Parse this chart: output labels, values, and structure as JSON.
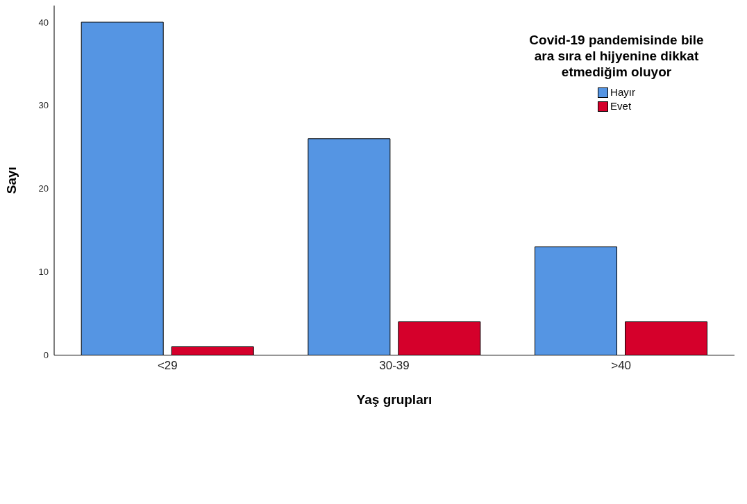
{
  "chart_data": {
    "type": "bar",
    "xlabel": "Yaş grupları",
    "ylabel": "Sayı",
    "legend_title": "Covid-19 pandemisinde bile ara sıra el hijyenine dikkat etmediğim oluyor",
    "categories": [
      "<29",
      "30-39",
      ">40"
    ],
    "series": [
      {
        "name": "Hayır",
        "color": "#5595e3",
        "values": [
          40,
          26,
          13
        ]
      },
      {
        "name": "Evet",
        "color": "#d5002b",
        "values": [
          1,
          4,
          4
        ]
      }
    ],
    "ylim": [
      0,
      42
    ],
    "yticks": [
      0,
      10,
      20,
      30,
      40
    ],
    "grid": false,
    "legend": "top right"
  }
}
